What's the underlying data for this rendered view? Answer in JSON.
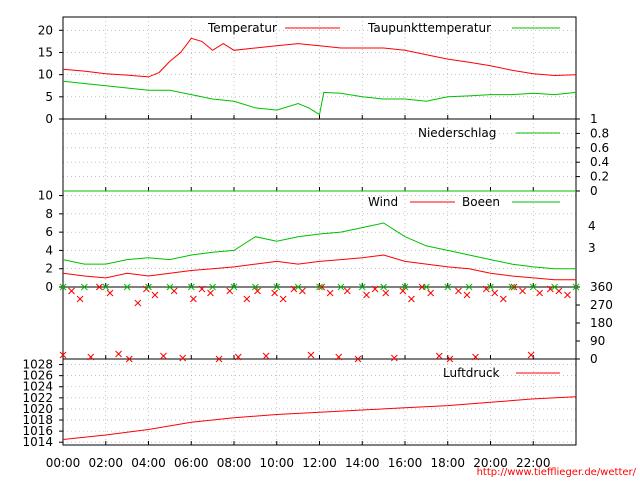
{
  "source_url": "http://www.tiefflieger.de/wetter/",
  "x_ticks": [
    "00:00",
    "02:00",
    "04:00",
    "06:00",
    "08:00",
    "10:00",
    "12:00",
    "14:00",
    "16:00",
    "18:00",
    "20:00",
    "22:00"
  ],
  "colors": {
    "red": "#ff0000",
    "green": "#00c000",
    "grid": "#a0a0a0"
  },
  "chart_data": [
    {
      "type": "line",
      "title": "",
      "x_unit": "hour",
      "xlim": [
        0,
        24
      ],
      "ylim": [
        0,
        23
      ],
      "y_ticks": [
        0,
        5,
        10,
        15,
        20
      ],
      "grid": true,
      "legend": "top",
      "series": [
        {
          "name": "Temperatur",
          "color": "#ff0000",
          "x": [
            0,
            1,
            2,
            3,
            4,
            4.5,
            5,
            5.5,
            6,
            6.5,
            7,
            7.5,
            8,
            9,
            10,
            11,
            12,
            13,
            14,
            15,
            16,
            17,
            18,
            19,
            20,
            21,
            22,
            23,
            24
          ],
          "values": [
            11.2,
            10.8,
            10.2,
            9.9,
            9.5,
            10.5,
            13,
            15,
            18.2,
            17.5,
            15.5,
            17,
            15.5,
            16,
            16.5,
            17,
            16.5,
            16,
            16,
            16,
            15.5,
            14.5,
            13.5,
            12.8,
            12,
            11,
            10.2,
            9.8,
            10
          ]
        },
        {
          "name": "Taupunkttemperatur",
          "color": "#00c000",
          "x": [
            0,
            1,
            2,
            3,
            4,
            5,
            6,
            7,
            8,
            9,
            10,
            11,
            11.5,
            12,
            12.2,
            13,
            14,
            15,
            16,
            17,
            18,
            19,
            20,
            21,
            22,
            23,
            24
          ],
          "values": [
            8.5,
            8.0,
            7.5,
            7.0,
            6.5,
            6.5,
            5.5,
            4.5,
            4.0,
            2.5,
            2.0,
            3.5,
            2.5,
            1.0,
            6.0,
            5.8,
            5.0,
            4.5,
            4.5,
            4.0,
            5.0,
            5.2,
            5.5,
            5.5,
            5.8,
            5.5,
            6.0
          ]
        }
      ]
    },
    {
      "type": "line",
      "title": "",
      "x_unit": "hour",
      "xlim": [
        0,
        24
      ],
      "ylim": [
        0,
        1
      ],
      "y_ticks": [
        0,
        0.2,
        0.4,
        0.6,
        0.8,
        1
      ],
      "y_axis_side": "right",
      "grid": true,
      "legend": "top-right",
      "series": [
        {
          "name": "Niederschlag",
          "color": "#00c000",
          "x": [
            0,
            24
          ],
          "values": [
            0,
            0
          ]
        }
      ]
    },
    {
      "type": "line",
      "title": "",
      "x_unit": "hour",
      "xlim": [
        0,
        24
      ],
      "ylim": [
        0,
        10.5
      ],
      "y_ticks": [
        0,
        2,
        4,
        6,
        8,
        10
      ],
      "right_labels": [
        "3",
        "4"
      ],
      "grid": true,
      "legend": "top",
      "series": [
        {
          "name": "Wind",
          "color": "#ff0000",
          "x": [
            0,
            1,
            2,
            3,
            4,
            5,
            6,
            7,
            8,
            9,
            10,
            11,
            12,
            13,
            14,
            15,
            16,
            17,
            18,
            19,
            20,
            21,
            22,
            23,
            24
          ],
          "values": [
            1.5,
            1.2,
            1.0,
            1.5,
            1.2,
            1.5,
            1.8,
            2.0,
            2.2,
            2.5,
            2.8,
            2.5,
            2.8,
            3.0,
            3.2,
            3.5,
            2.8,
            2.5,
            2.2,
            2.0,
            1.5,
            1.2,
            1.0,
            0.8,
            0.8
          ]
        },
        {
          "name": "Boeen",
          "color": "#00c000",
          "x": [
            0,
            1,
            2,
            3,
            4,
            5,
            6,
            7,
            8,
            9,
            10,
            11,
            12,
            13,
            14,
            15,
            16,
            17,
            18,
            19,
            20,
            21,
            22,
            23,
            24
          ],
          "values": [
            3.0,
            2.5,
            2.5,
            3.0,
            3.2,
            3.0,
            3.5,
            3.8,
            4.0,
            5.5,
            5.0,
            5.5,
            5.8,
            6.0,
            6.5,
            7.0,
            5.5,
            4.5,
            4.0,
            3.5,
            3.0,
            2.5,
            2.2,
            2.0,
            2.0
          ]
        }
      ]
    },
    {
      "type": "scatter",
      "title": "",
      "x_unit": "hour",
      "xlim": [
        0,
        24
      ],
      "ylim": [
        0,
        360
      ],
      "y_ticks": [
        0,
        90,
        180,
        270,
        360
      ],
      "y_axis_side": "right",
      "series": [
        {
          "name": "",
          "color": "#ff0000",
          "x": [
            0,
            0.4,
            0.8,
            1.3,
            1.7,
            2.2,
            2.6,
            3.1,
            3.5,
            3.9,
            4.3,
            4.7,
            5.2,
            5.6,
            6.1,
            6.5,
            6.9,
            7.3,
            7.8,
            8.2,
            8.6,
            9.1,
            9.5,
            9.9,
            10.3,
            10.8,
            11.2,
            11.6,
            12.1,
            12.5,
            12.9,
            13.3,
            13.8,
            14.2,
            14.6,
            15.1,
            15.5,
            15.9,
            16.3,
            16.8,
            17.2,
            17.6,
            18.1,
            18.5,
            18.9,
            19.3,
            19.8,
            20.2,
            20.6,
            21.1,
            21.5,
            21.9,
            22.3,
            22.8,
            23.2,
            23.6
          ],
          "values": [
            20,
            340,
            300,
            10,
            360,
            330,
            25,
            0,
            280,
            350,
            320,
            15,
            340,
            5,
            300,
            350,
            330,
            0,
            340,
            10,
            300,
            340,
            15,
            330,
            300,
            350,
            340,
            20,
            360,
            330,
            10,
            340,
            0,
            320,
            350,
            330,
            5,
            340,
            300,
            360,
            330,
            15,
            0,
            340,
            320,
            10,
            350,
            330,
            300,
            360,
            340,
            20,
            330,
            350,
            340,
            320
          ]
        },
        {
          "name": "",
          "color": "#00c000",
          "x": [
            0,
            1,
            2,
            3,
            4,
            5,
            6,
            7,
            8,
            9,
            10,
            11,
            12,
            13,
            14,
            15,
            16,
            17,
            18,
            19,
            20,
            21,
            22,
            23,
            24
          ],
          "values": [
            360,
            360,
            360,
            360,
            360,
            360,
            360,
            360,
            360,
            360,
            360,
            360,
            360,
            360,
            360,
            360,
            360,
            360,
            360,
            360,
            360,
            360,
            360,
            360,
            360
          ]
        }
      ]
    },
    {
      "type": "line",
      "title": "",
      "x_unit": "hour",
      "xlim": [
        0,
        24
      ],
      "ylim": [
        1013.5,
        1029
      ],
      "y_ticks": [
        1014,
        1016,
        1018,
        1020,
        1022,
        1024,
        1026,
        1028
      ],
      "grid": true,
      "legend": "top-right",
      "series": [
        {
          "name": "Luftdruck",
          "color": "#ff0000",
          "x": [
            0,
            2,
            4,
            6,
            8,
            10,
            12,
            14,
            16,
            18,
            20,
            22,
            24
          ],
          "values": [
            1014.5,
            1015.3,
            1016.3,
            1017.6,
            1018.4,
            1019.0,
            1019.4,
            1019.8,
            1020.2,
            1020.6,
            1021.2,
            1021.8,
            1022.2
          ]
        }
      ]
    }
  ]
}
